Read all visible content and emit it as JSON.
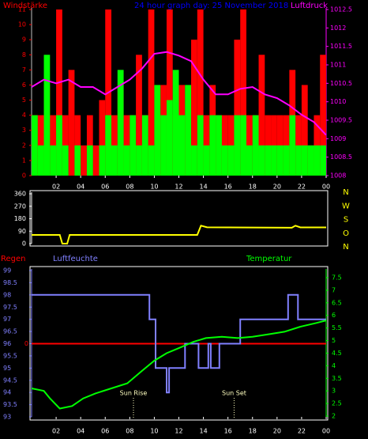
{
  "chart_data": [
    {
      "type": "bar",
      "title": "24 hour graph day:  25 November 2018",
      "xlim": [
        0,
        24
      ],
      "xticks": [
        {
          "value": 2,
          "label": "02"
        },
        {
          "value": 4,
          "label": "04"
        },
        {
          "value": 6,
          "label": "06"
        },
        {
          "value": 8,
          "label": "08"
        },
        10,
        12,
        14,
        16,
        18,
        20,
        22,
        {
          "value": 24,
          "label": "00"
        }
      ],
      "ylim": [
        0,
        11
      ],
      "yticks": [
        0,
        1,
        2,
        3,
        4,
        5,
        6,
        7,
        8,
        9,
        10,
        11
      ],
      "y_color": "#ff0000",
      "y2lim": [
        1008,
        1012.5
      ],
      "y2ticks": [
        1008,
        1008.5,
        1009,
        1009.5,
        1010,
        1010.5,
        1011,
        1011.5,
        1012,
        1012.5
      ],
      "y2_color": "#ff00ff",
      "series": [
        {
          "name": "Windstärke",
          "color": "#ff0000",
          "type": "bar",
          "x": [
            0,
            0.5,
            1,
            1.5,
            2,
            2.5,
            3,
            3.5,
            4,
            4.5,
            5,
            5.5,
            6,
            6.5,
            7,
            7.5,
            8,
            8.5,
            9,
            9.5,
            10,
            10.5,
            11,
            11.5,
            12,
            12.5,
            13,
            13.5,
            14,
            14.5,
            15,
            15.5,
            16,
            16.5,
            17,
            17.5,
            18,
            18.5,
            19,
            19.5,
            20,
            20.5,
            21,
            21.5,
            22,
            22.5,
            23,
            23.5
          ],
          "values": [
            4,
            4,
            6,
            4,
            11,
            4,
            7,
            4,
            2,
            4,
            2,
            5,
            11,
            4,
            6,
            4,
            4,
            8,
            4,
            11,
            4,
            6,
            11,
            4,
            6,
            4,
            9,
            11,
            4,
            6,
            4,
            4,
            4,
            9,
            11,
            4,
            4,
            8,
            4,
            4,
            4,
            4,
            7,
            4,
            6,
            2,
            4,
            8
          ]
        },
        {
          "color": "#00ff00",
          "type": "bar",
          "x": [
            0,
            0.5,
            1,
            1.5,
            2,
            2.5,
            3,
            3.5,
            4,
            4.5,
            5,
            5.5,
            6,
            6.5,
            7,
            7.5,
            8,
            8.5,
            9,
            9.5,
            10,
            10.5,
            11,
            11.5,
            12,
            12.5,
            13,
            13.5,
            14,
            14.5,
            15,
            15.5,
            16,
            16.5,
            17,
            17.5,
            18,
            18.5,
            19,
            19.5,
            20,
            20.5,
            21,
            21.5,
            22,
            22.5,
            23,
            23.5
          ],
          "values": [
            4,
            2,
            8,
            2,
            4,
            2,
            0,
            2,
            0,
            2,
            0,
            2,
            4,
            2,
            7,
            2,
            4,
            2,
            4,
            2,
            6,
            4,
            5,
            7,
            4,
            6,
            2,
            4,
            2,
            4,
            4,
            2,
            2,
            4,
            4,
            2,
            4,
            2,
            2,
            2,
            2,
            2,
            4,
            2,
            2,
            2,
            2,
            2
          ]
        },
        {
          "name": "Luftdruck",
          "color": "#ff00ff",
          "type": "line",
          "axis": "y2",
          "x": [
            0,
            1,
            2,
            3,
            4,
            5,
            6,
            7,
            8,
            9,
            10,
            11,
            12,
            13,
            14,
            15,
            16,
            17,
            18,
            19,
            20,
            21,
            22,
            23,
            24
          ],
          "values": [
            1010.4,
            1010.6,
            1010.5,
            1010.6,
            1010.4,
            1010.4,
            1010.2,
            1010.4,
            1010.6,
            1010.9,
            1011.3,
            1011.35,
            1011.25,
            1011.1,
            1010.6,
            1010.2,
            1010.2,
            1010.35,
            1010.4,
            1010.2,
            1010.1,
            1009.9,
            1009.65,
            1009.45,
            1009.1
          ]
        }
      ]
    },
    {
      "type": "line",
      "xlim": [
        0,
        24
      ],
      "ylim": [
        0,
        360
      ],
      "yticks": [
        0,
        90,
        180,
        270,
        360
      ],
      "y_color": "#ffffff",
      "compass": [
        "N",
        "W",
        "S",
        "O",
        "N"
      ],
      "series": [
        {
          "color": "#ffff00",
          "type": "line",
          "x": [
            0,
            2.3,
            2.5,
            2.9,
            3.1,
            13.5,
            13.8,
            14.3,
            21.2,
            21.5,
            21.9,
            24
          ],
          "values": [
            63,
            63,
            0,
            0,
            63,
            63,
            130,
            118,
            115,
            130,
            117,
            117
          ]
        }
      ]
    },
    {
      "type": "line",
      "xlim": [
        0,
        24
      ],
      "xticks": [
        {
          "value": 2,
          "label": "02"
        },
        {
          "value": 4,
          "label": "04"
        },
        {
          "value": 6,
          "label": "06"
        },
        {
          "value": 8,
          "label": "08"
        },
        10,
        12,
        14,
        16,
        18,
        20,
        22,
        {
          "value": 24,
          "label": "00"
        }
      ],
      "ylim": [
        93,
        99
      ],
      "yticks": [
        93,
        93.5,
        94,
        94.5,
        95,
        95.5,
        96,
        96.5,
        97,
        97.5,
        98,
        98.5,
        99
      ],
      "y_color": "#8080ff",
      "y2lim": [
        2,
        7.5
      ],
      "y2ticks": [
        2,
        2.5,
        3,
        3.5,
        4,
        4.5,
        5,
        5.5,
        6,
        6.5,
        7,
        7.5
      ],
      "y2_color": "#00ff00",
      "y3lim": [
        -3,
        3
      ],
      "y3ticks": [
        0
      ],
      "y3_color": "#ff0000",
      "annotations": [
        {
          "text": "Sun Rise",
          "x": 8.3
        },
        {
          "text": "Sun Set",
          "x": 16.5
        }
      ],
      "series": [
        {
          "name": "Regen",
          "color": "#ff0000",
          "type": "line",
          "axis": "y3",
          "x": [
            0,
            24
          ],
          "values": [
            0,
            0
          ]
        },
        {
          "name": "Luftfeuchte",
          "color": "#8080ff",
          "type": "line",
          "x": [
            0,
            9.6,
            9.6,
            10.1,
            10.1,
            11.0,
            11.0,
            11.2,
            11.2,
            12.5,
            12.5,
            13.6,
            13.6,
            14.4,
            14.4,
            14.6,
            14.6,
            15.3,
            15.3,
            17.0,
            17.0,
            20.9,
            20.9,
            21.7,
            21.7,
            24
          ],
          "values": [
            98,
            98,
            97,
            97,
            95,
            95,
            94,
            94,
            95,
            95,
            96,
            96,
            95,
            95,
            96,
            96,
            95,
            95,
            96,
            96,
            97,
            97,
            98,
            98,
            97,
            97
          ]
        },
        {
          "name": "Temperatur",
          "color": "#00ff00",
          "type": "line",
          "axis": "y2",
          "x": [
            0,
            1,
            1.5,
            2.3,
            3.3,
            4.2,
            5.2,
            6.5,
            7.8,
            9,
            10,
            11,
            12,
            13.2,
            14.2,
            15.5,
            16.8,
            18,
            19.3,
            20.6,
            21.9,
            23.2,
            24
          ],
          "values": [
            3.1,
            3.0,
            2.7,
            2.3,
            2.4,
            2.7,
            2.9,
            3.1,
            3.3,
            3.8,
            4.2,
            4.5,
            4.7,
            4.95,
            5.1,
            5.15,
            5.1,
            5.15,
            5.25,
            5.35,
            5.55,
            5.7,
            5.8
          ]
        }
      ]
    }
  ]
}
